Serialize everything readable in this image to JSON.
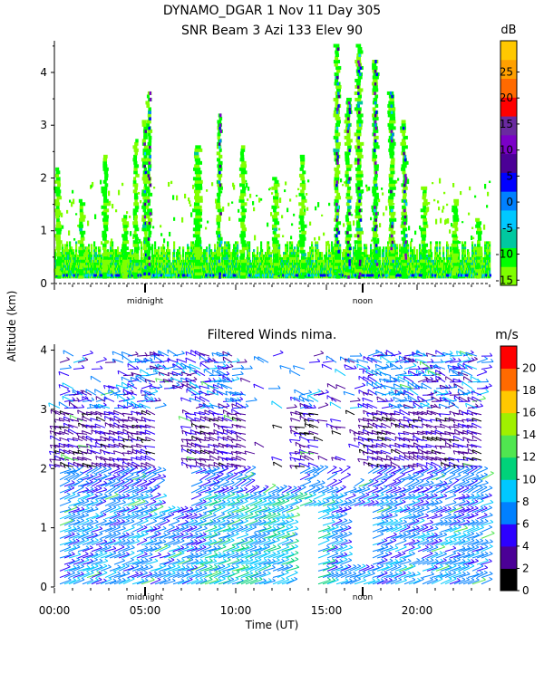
{
  "header": {
    "line1": "DYNAMO_DGAR    1 Nov 11 Day 305",
    "line2": "SNR Beam 3 Azi 133 Elev 90"
  },
  "shared_ylabel": "Altitude (km)",
  "chart_data": [
    {
      "type": "heatmap",
      "title": "SNR Beam 3 Azi 133 Elev 90",
      "xlabel": "",
      "ylabel": "Altitude (km)",
      "xlim": [
        0,
        24
      ],
      "ylim": [
        0,
        4.6
      ],
      "yticks": [
        0,
        1,
        2,
        3,
        4
      ],
      "markers": [
        {
          "label": "midnight",
          "x": 5.0
        },
        {
          "label": "noon",
          "x": 17.0
        }
      ],
      "colorbar": {
        "unit": "dB",
        "ticks": [
          -15,
          -10,
          -5,
          0,
          5,
          10,
          15,
          20,
          25
        ],
        "colors": [
          "#7fff00",
          "#00ff00",
          "#00c8a0",
          "#00c8ff",
          "#0080ff",
          "#0000ff",
          "#4b0096",
          "#7b00c8",
          "#6a2aa0",
          "#ff0000",
          "#ff6a00",
          "#ffa000",
          "#ffc800"
        ]
      },
      "features": {
        "baseline_band_km": [
          0.1,
          0.8
        ],
        "plumes": [
          {
            "x": 0.2,
            "top": 2.2,
            "w": 0.3
          },
          {
            "x": 1.5,
            "top": 1.6,
            "w": 0.3
          },
          {
            "x": 2.8,
            "top": 2.4,
            "w": 0.3
          },
          {
            "x": 3.9,
            "top": 1.3,
            "w": 0.3
          },
          {
            "x": 4.5,
            "top": 2.7,
            "w": 0.25
          },
          {
            "x": 5.0,
            "top": 3.1,
            "w": 0.25
          },
          {
            "x": 5.2,
            "top": 3.6,
            "w": 0.25
          },
          {
            "x": 7.9,
            "top": 2.6,
            "w": 0.4
          },
          {
            "x": 9.1,
            "top": 3.2,
            "w": 0.25
          },
          {
            "x": 10.4,
            "top": 2.6,
            "w": 0.3
          },
          {
            "x": 12.2,
            "top": 2.0,
            "w": 0.3
          },
          {
            "x": 13.7,
            "top": 2.4,
            "w": 0.3
          },
          {
            "x": 15.6,
            "top": 4.5,
            "w": 0.3
          },
          {
            "x": 16.2,
            "top": 3.5,
            "w": 0.3
          },
          {
            "x": 16.8,
            "top": 4.5,
            "w": 0.35
          },
          {
            "x": 17.7,
            "top": 4.2,
            "w": 0.3
          },
          {
            "x": 18.6,
            "top": 3.6,
            "w": 0.35
          },
          {
            "x": 19.3,
            "top": 3.1,
            "w": 0.3
          },
          {
            "x": 20.4,
            "top": 1.8,
            "w": 0.3
          },
          {
            "x": 22.1,
            "top": 1.6,
            "w": 0.3
          },
          {
            "x": 23.4,
            "top": 1.2,
            "w": 0.3
          }
        ]
      }
    },
    {
      "type": "scatter",
      "title": "Filtered Winds nima.",
      "xlabel": "Time (UT)",
      "ylabel": "Altitude (km)",
      "xlim": [
        0,
        24
      ],
      "ylim": [
        0,
        4.1
      ],
      "xticks": [
        "00:00",
        "05:00",
        "10:00",
        "15:00",
        "20:00"
      ],
      "yticks": [
        0,
        1,
        2,
        3,
        4
      ],
      "markers": [
        {
          "label": "midnight",
          "x": 5.0
        },
        {
          "label": "noon",
          "x": 17.0
        }
      ],
      "colorbar": {
        "unit": "m/s",
        "ticks": [
          0,
          2,
          4,
          6,
          8,
          10,
          12,
          14,
          16,
          18,
          20
        ],
        "colors": [
          "#000000",
          "#4b0096",
          "#2d00ff",
          "#0080ff",
          "#00c8ff",
          "#00d27a",
          "#50e650",
          "#a0f000",
          "#ffc800",
          "#ff6a00",
          "#ff0000"
        ]
      },
      "regimes": [
        {
          "alt": [
            0,
            1.5
          ],
          "speed": 6.5,
          "dir": "NE"
        },
        {
          "alt": [
            1.5,
            2.0
          ],
          "speed": 5.5,
          "dir": "NE"
        },
        {
          "alt": [
            2.0,
            3.0
          ],
          "speed": 3.0,
          "dir": "W"
        },
        {
          "alt": [
            3.0,
            4.0
          ],
          "speed": 6.0,
          "dir": "mixed"
        }
      ]
    }
  ]
}
